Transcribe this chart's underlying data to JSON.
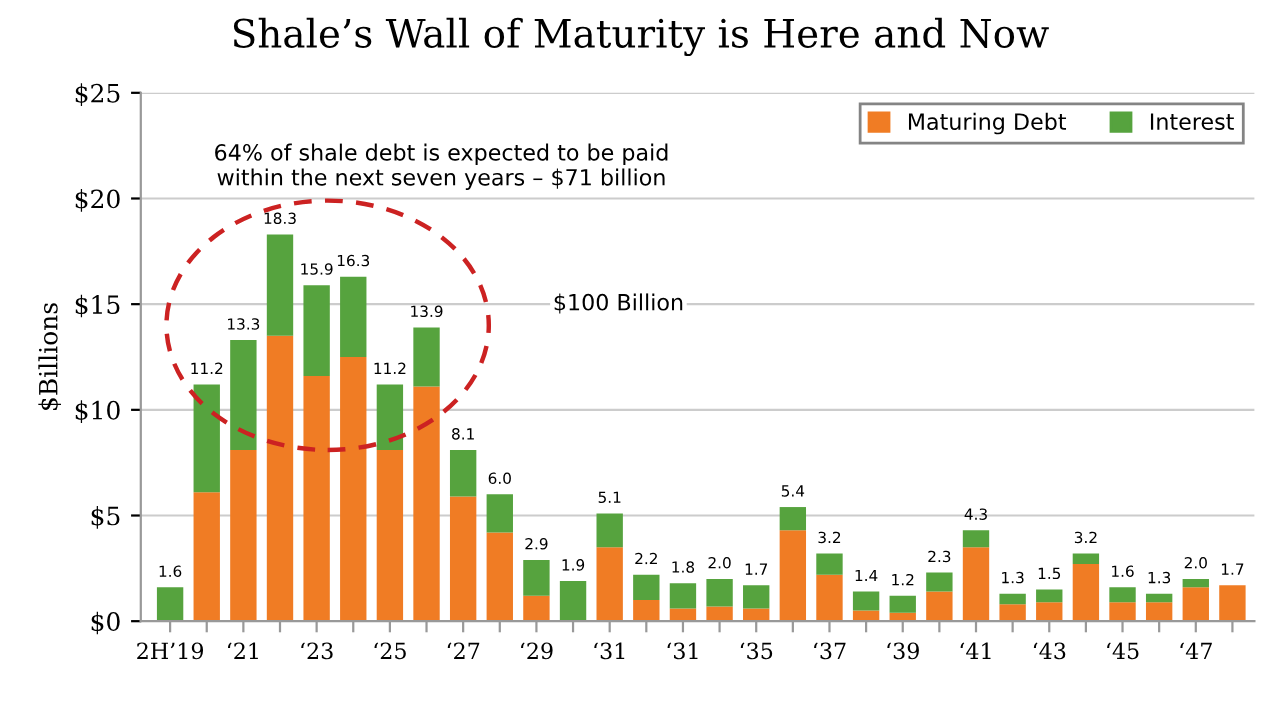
{
  "chart_data": {
    "type": "bar",
    "stacked": true,
    "title": "Shale’s Wall of Maturity is Here and Now",
    "ylabel": "$Billions",
    "categories": [
      "2H’19",
      null,
      "‘21",
      null,
      "‘23",
      null,
      "‘25",
      null,
      "‘27",
      null,
      "‘29",
      null,
      "‘31",
      null,
      "‘31",
      null,
      "‘35",
      null,
      "‘37",
      null,
      "‘39",
      null,
      "‘41",
      null,
      "‘43",
      null,
      "‘45",
      null,
      "‘47",
      null
    ],
    "series": [
      {
        "name": "Maturing Debt",
        "color": "#f07c24",
        "values": [
          0,
          6.1,
          8.1,
          13.5,
          11.6,
          12.5,
          8.1,
          11.1,
          5.9,
          4.2,
          1.2,
          0,
          3.5,
          1.0,
          0.6,
          0.7,
          0.6,
          4.3,
          2.2,
          0.5,
          0.4,
          1.4,
          3.5,
          0.8,
          0.9,
          2.7,
          0.9,
          0.9,
          1.6,
          1.7
        ]
      },
      {
        "name": "Interest",
        "color": "#56a33e",
        "values": [
          1.6,
          5.1,
          5.2,
          4.8,
          4.3,
          3.8,
          3.1,
          2.8,
          2.2,
          1.8,
          1.7,
          1.9,
          1.6,
          1.2,
          1.2,
          1.3,
          1.1,
          1.1,
          1.0,
          0.9,
          0.8,
          0.9,
          0.8,
          0.5,
          0.6,
          0.5,
          0.7,
          0.4,
          0.4,
          0
        ]
      }
    ],
    "totals": [
      "1.6",
      "11.2",
      "13.3",
      "18.3",
      "15.9",
      "16.3",
      "11.2",
      "13.9",
      "8.1",
      "6.0",
      "2.9",
      "1.9",
      "5.1",
      "2.2",
      "1.8",
      "2.0",
      "1.7",
      "5.4",
      "3.2",
      "1.4",
      "1.2",
      "2.3",
      "4.3",
      "1.3",
      "1.5",
      "3.2",
      "1.6",
      "1.3",
      "2.0",
      "1.7"
    ],
    "ylim": [
      0,
      25
    ],
    "yticks": [
      {
        "value": 0,
        "label": "$0"
      },
      {
        "value": 5,
        "label": "$5"
      },
      {
        "value": 10,
        "label": "$10"
      },
      {
        "value": 15,
        "label": "$15"
      },
      {
        "value": 20,
        "label": "$20"
      },
      {
        "value": 25,
        "label": "$25"
      }
    ],
    "grid": "y",
    "legend": "top right",
    "annotations": [
      "64% of shale debt is expected to be paid\nwithin the next seven years – $71 billion",
      "$100 Billion"
    ]
  }
}
